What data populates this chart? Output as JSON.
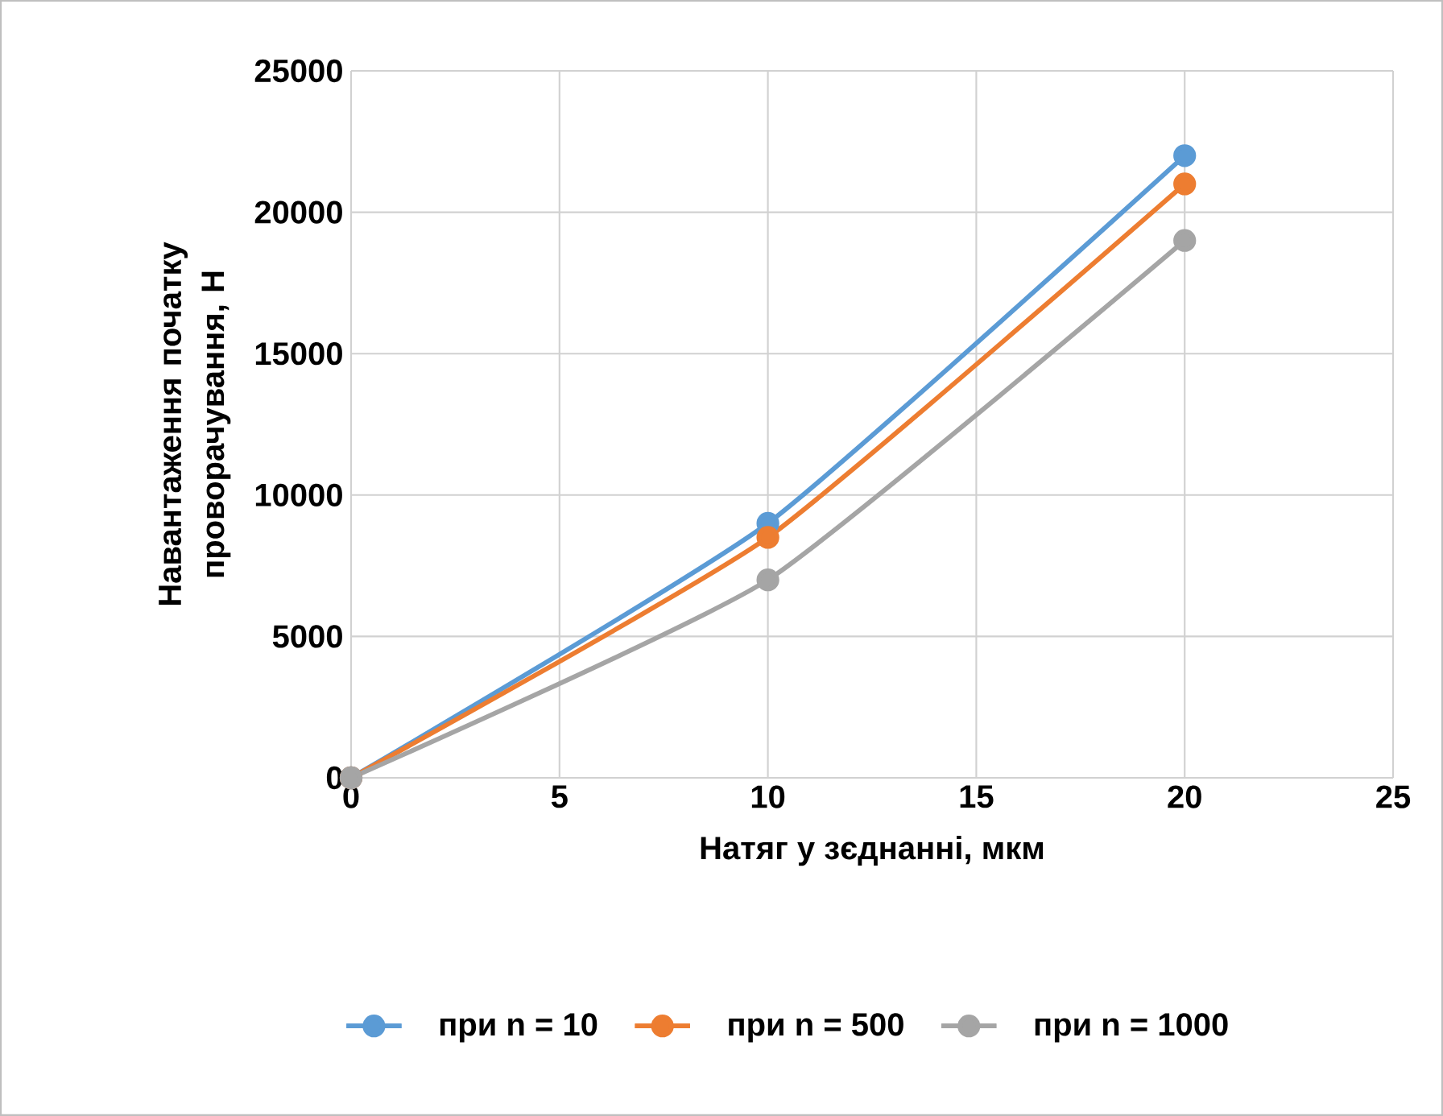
{
  "chart_data": {
    "type": "line",
    "xlabel": "Натяг у зєднанні, мкм",
    "ylabel": "Навантаження початку проворачування, Н",
    "x": [
      0,
      10,
      20
    ],
    "series": [
      {
        "name": "при n = 10",
        "color": "#5b9bd5",
        "values": [
          0,
          9000,
          22000
        ]
      },
      {
        "name": "при n = 500",
        "color": "#ed7d31",
        "values": [
          0,
          8500,
          21000
        ]
      },
      {
        "name": "при n = 1000",
        "color": "#a5a5a5",
        "values": [
          0,
          7000,
          19000
        ]
      }
    ],
    "xlim": [
      0,
      25
    ],
    "ylim": [
      0,
      25000
    ],
    "xticks": [
      0,
      5,
      10,
      15,
      20,
      25
    ],
    "yticks": [
      0,
      5000,
      10000,
      15000,
      20000,
      25000
    ],
    "grid": true,
    "legend": "bottom",
    "marker": "circle",
    "line_style": "solid"
  }
}
